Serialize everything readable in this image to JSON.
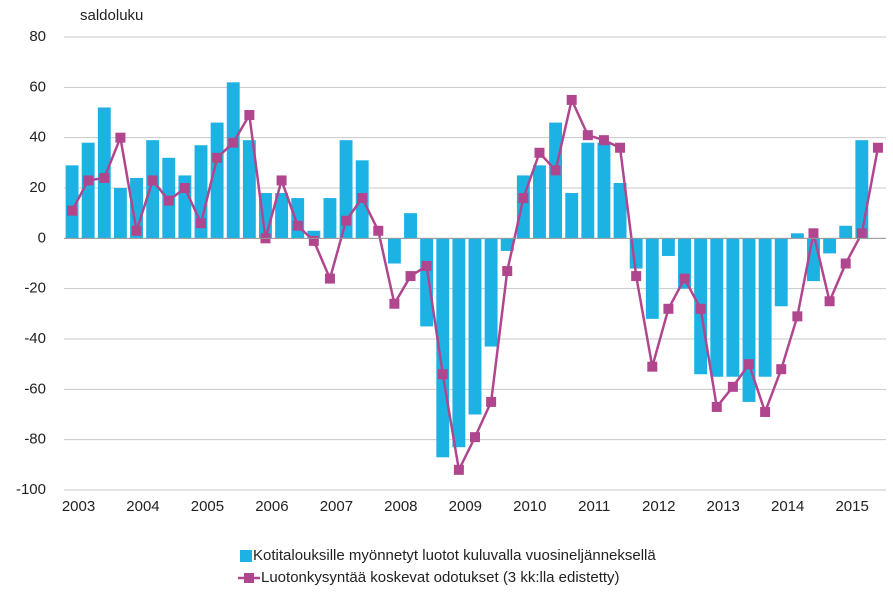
{
  "chart_data": {
    "type": "bar-line",
    "y_label": "saldoluku",
    "categories": [
      "2003",
      null,
      null,
      null,
      "2004",
      null,
      null,
      null,
      "2005",
      null,
      null,
      null,
      "2006",
      null,
      null,
      null,
      "2007",
      null,
      null,
      null,
      "2008",
      null,
      null,
      null,
      "2009",
      null,
      null,
      null,
      "2010",
      null,
      null,
      null,
      "2011",
      null,
      null,
      null,
      "2012",
      null,
      null,
      null,
      "2013",
      null,
      null,
      null,
      "2014",
      null,
      null,
      null,
      "2015",
      null,
      null
    ],
    "series": [
      {
        "name": "Kotitalouksille myönnetyt luotot kuluvalla vuosineljänneksellä",
        "type": "bar",
        "color": "#1cb3e4",
        "values": [
          29,
          38,
          52,
          20,
          24,
          39,
          32,
          25,
          37,
          46,
          62,
          39,
          18,
          18,
          16,
          3,
          16,
          39,
          31,
          0,
          -10,
          10,
          -35,
          -87,
          -83,
          -70,
          -43,
          -5,
          25,
          29,
          46,
          18,
          38,
          38,
          22,
          -12,
          -32,
          -7,
          -20,
          -54,
          -55,
          -55,
          -65,
          -55,
          -27,
          2,
          -17,
          -6,
          5,
          39,
          null
        ]
      },
      {
        "name": "Luotonkysyntää koskevat odotukset (3 kk:lla edistetty)",
        "type": "line",
        "color": "#b0478e",
        "values": [
          11,
          23,
          24,
          40,
          3,
          23,
          15,
          20,
          6,
          32,
          38,
          49,
          0,
          23,
          5,
          -1,
          -16,
          7,
          16,
          3,
          -26,
          -15,
          -11,
          -54,
          -92,
          -79,
          -65,
          -13,
          16,
          34,
          27,
          55,
          41,
          39,
          36,
          -15,
          -51,
          -28,
          -16,
          -28,
          -67,
          -59,
          -50,
          -69,
          -52,
          -31,
          2,
          -25,
          -10,
          2,
          36
        ]
      }
    ],
    "ylim": [
      -100,
      80
    ],
    "yticks": [
      -100,
      -80,
      -60,
      -40,
      -20,
      0,
      20,
      40,
      60,
      80
    ],
    "grid": true
  }
}
